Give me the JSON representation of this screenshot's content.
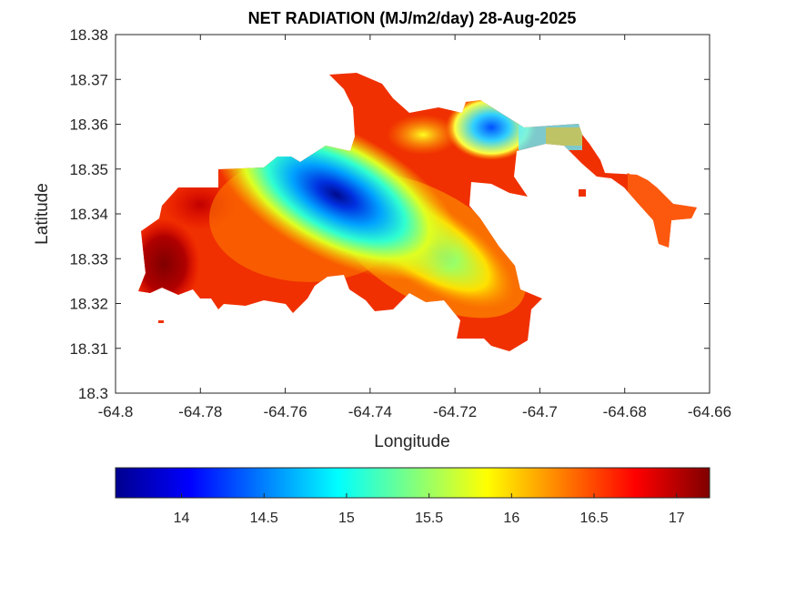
{
  "title": "NET RADIATION (MJ/m2/day) 28-Aug-2025",
  "xlabel": "Longitude",
  "ylabel": "Latitude",
  "x_ticks": [
    "-64.8",
    "-64.78",
    "-64.76",
    "-64.74",
    "-64.72",
    "-64.7",
    "-64.68",
    "-64.66"
  ],
  "y_ticks": [
    "18.3",
    "18.31",
    "18.32",
    "18.33",
    "18.34",
    "18.35",
    "18.36",
    "18.37",
    "18.38"
  ],
  "colorbar_ticks": [
    "14",
    "14.5",
    "15",
    "15.5",
    "16",
    "16.5",
    "17"
  ],
  "chart_data": {
    "type": "heatmap",
    "title": "NET RADIATION (MJ/m2/day) 28-Aug-2025",
    "xlabel": "Longitude",
    "ylabel": "Latitude",
    "xlim": [
      -64.8,
      -64.66
    ],
    "ylim": [
      18.3,
      18.38
    ],
    "colormap": "jet",
    "clim": [
      13.6,
      17.2
    ],
    "colorbar_ticks": [
      14,
      14.5,
      15,
      15.5,
      16,
      16.5,
      17
    ],
    "colorbar_location": "bottom",
    "approx_extrema": {
      "min": {
        "lon": -64.748,
        "lat": 18.344,
        "value": 13.7
      },
      "max": {
        "lon": -64.792,
        "lat": 18.331,
        "value": 17.1
      }
    }
  }
}
